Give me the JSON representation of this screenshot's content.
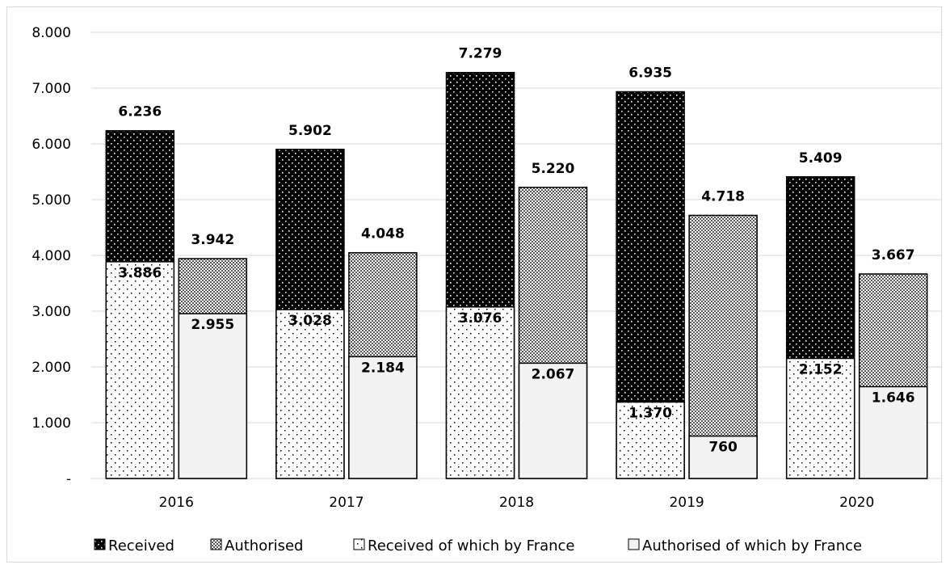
{
  "chart_data": {
    "type": "bar",
    "categories": [
      "2016",
      "2017",
      "2018",
      "2019",
      "2020"
    ],
    "ylim": [
      0,
      8000
    ],
    "yticks": [
      {
        "value": 0,
        "label": "-"
      },
      {
        "value": 1000,
        "label": "1.000"
      },
      {
        "value": 2000,
        "label": "2.000"
      },
      {
        "value": 3000,
        "label": "3.000"
      },
      {
        "value": 4000,
        "label": "4.000"
      },
      {
        "value": 5000,
        "label": "5.000"
      },
      {
        "value": 6000,
        "label": "6.000"
      },
      {
        "value": 7000,
        "label": "7.000"
      },
      {
        "value": 8000,
        "label": "8.000"
      }
    ],
    "grid": true,
    "legend_position": "bottom",
    "series": [
      {
        "name": "Received",
        "values": [
          6236,
          5902,
          7279,
          6935,
          5409
        ],
        "labels": [
          "6.236",
          "5.902",
          "7.279",
          "6.935",
          "5.409"
        ],
        "pattern": "dots-on-black"
      },
      {
        "name": "Authorised",
        "values": [
          3942,
          4048,
          5220,
          4718,
          3667
        ],
        "labels": [
          "3.942",
          "4.048",
          "5.220",
          "4.718",
          "3.667"
        ],
        "pattern": "checker"
      },
      {
        "name": "Received of which by France",
        "values": [
          3886,
          3028,
          3076,
          1370,
          2152
        ],
        "labels": [
          "3.886",
          "3.028",
          "3.076",
          "1.370",
          "2.152"
        ],
        "pattern": "dots-on-white"
      },
      {
        "name": "Authorised of which by France",
        "values": [
          2955,
          2184,
          2067,
          760,
          1646
        ],
        "labels": [
          "2.955",
          "2.184",
          "2.067",
          "760",
          "1.646"
        ],
        "pattern": "light-grey"
      }
    ],
    "colors": {
      "black": "#000000",
      "light_grey": "#f2f2f2",
      "grid": "#d9d9d9"
    }
  }
}
